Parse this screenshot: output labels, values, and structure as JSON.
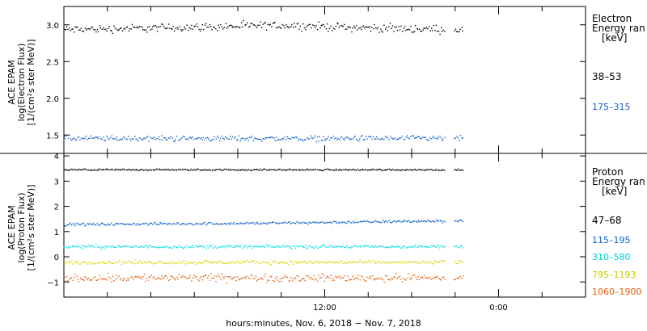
{
  "chart_data": [
    {
      "type": "scatter",
      "panel": "electron",
      "ylabel_lines": [
        "ACE EPAM",
        "log(Electron Flux)",
        "[1/(cm²s ster MeV)]"
      ],
      "ylim": [
        1.25,
        3.25
      ],
      "yticks": [
        1.5,
        2.0,
        2.5,
        3.0
      ],
      "ytick_labels": [
        "1.5",
        "2.0",
        "2.5",
        "3.0"
      ],
      "legend_title": [
        "Electron",
        "Energy ran",
        "[keV]"
      ],
      "series": [
        {
          "name": "38–53",
          "color": "#000000",
          "base": 2.94,
          "amp": 0.05,
          "trend": [
            [
              0,
              0
            ],
            [
              0.55,
              0.06
            ],
            [
              0.8,
              0.02
            ],
            [
              1,
              0
            ]
          ]
        },
        {
          "name": "175–315",
          "color": "#1060c8",
          "base": 1.46,
          "amp": 0.035,
          "trend": [
            [
              0,
              0
            ],
            [
              1,
              0
            ]
          ]
        }
      ]
    },
    {
      "type": "scatter",
      "panel": "proton",
      "ylabel_lines": [
        "ACE EPAM",
        "log(Proton Flux)",
        "[1/(cm²s ster MeV)]"
      ],
      "ylim": [
        -1.6,
        4.1
      ],
      "yticks": [
        -1,
        0,
        1,
        2,
        3,
        4
      ],
      "ytick_labels": [
        "−1",
        "0",
        "1",
        "2",
        "3",
        "4"
      ],
      "legend_title": [
        "Proton",
        "Energy ran",
        "[keV]"
      ],
      "series": [
        {
          "name": "47–68",
          "color": "#000000",
          "base": 3.47,
          "amp": 0.03,
          "trend": [
            [
              0,
              0
            ],
            [
              1,
              0
            ]
          ]
        },
        {
          "name": "115–195",
          "color": "#1060c8",
          "base": 1.35,
          "amp": 0.05,
          "trend": [
            [
              0,
              -0.05
            ],
            [
              0.5,
              0
            ],
            [
              1,
              0.1
            ]
          ]
        },
        {
          "name": "310–580",
          "color": "#00e0e0",
          "base": 0.42,
          "amp": 0.06,
          "trend": [
            [
              0,
              0
            ],
            [
              1,
              0
            ]
          ]
        },
        {
          "name": "795–1193",
          "color": "#d8d800",
          "base": -0.2,
          "amp": 0.07,
          "trend": [
            [
              0,
              0
            ],
            [
              1,
              0
            ]
          ]
        },
        {
          "name": "1060–1900",
          "color": "#e06010",
          "base": -0.82,
          "amp": 0.14,
          "trend": [
            [
              0,
              0
            ],
            [
              1,
              0
            ]
          ]
        }
      ]
    }
  ],
  "x_axis": {
    "tick_labels": [
      {
        "label": "12:00",
        "hour": 12
      },
      {
        "label": "0:00",
        "hour": 24
      }
    ],
    "xlim_hours": [
      -6,
      30
    ],
    "data_end_hour": 21.5,
    "gap_hours": [
      20.3,
      20.9
    ],
    "label": "hours:minutes, Nov.  6, 2018 − Nov.  7, 2018"
  },
  "colors": {
    "frame": "#000000",
    "background": "#ffffff"
  }
}
